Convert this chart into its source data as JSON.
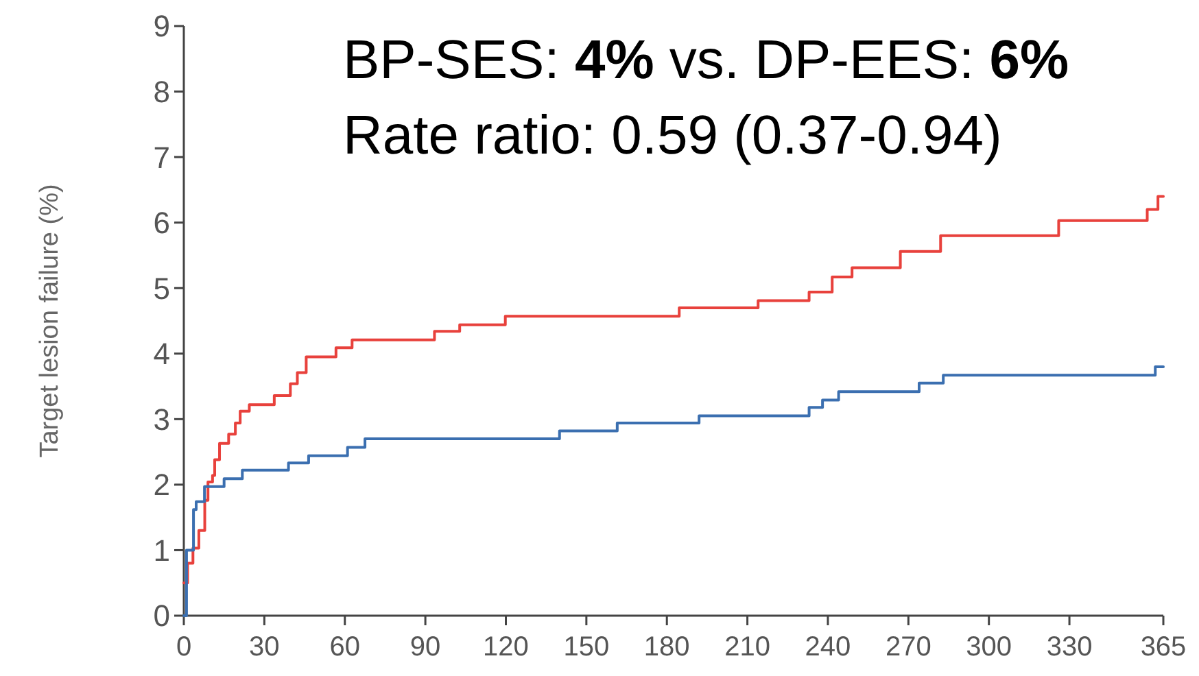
{
  "chart_data": {
    "type": "step",
    "title": "BP-SES: 4% vs. DP-EES: 6%",
    "subtitle": "Rate ratio: 0.59 (0.37-0.94)",
    "ylabel": "Target lesion failure (%)",
    "xlim": [
      0,
      365
    ],
    "xticks": [
      0,
      30,
      60,
      90,
      120,
      150,
      180,
      210,
      240,
      270,
      300,
      330,
      365
    ],
    "ylim": [
      0,
      9
    ],
    "yticks": [
      0,
      1,
      2,
      3,
      4,
      5,
      6,
      7,
      8,
      9
    ],
    "grid": false,
    "line_style": "solid",
    "marker": "none",
    "series": [
      {
        "color": "#e8413c",
        "x": [
          0,
          1.4,
          3.4,
          5.6,
          7.8,
          9,
          10.7,
          11.5,
          13.3,
          16.7,
          19.2,
          21,
          24.4,
          33.7,
          39.7,
          42.3,
          45.6,
          56.7,
          62.7,
          93.4,
          102.8,
          119.8,
          184.6,
          214,
          233,
          241.6,
          249,
          267,
          282,
          326,
          359,
          363,
          365
        ],
        "values": [
          0.5,
          0.8,
          1.03,
          1.3,
          1.76,
          2.04,
          2.14,
          2.38,
          2.63,
          2.77,
          2.94,
          3.12,
          3.22,
          3.36,
          3.54,
          3.71,
          3.95,
          4.09,
          4.21,
          4.34,
          4.44,
          4.57,
          4.7,
          4.81,
          4.94,
          5.17,
          5.31,
          5.56,
          5.8,
          6.03,
          6.2,
          6.4,
          6.4
        ]
      },
      {
        "color": "#3b6fb0",
        "x": [
          0,
          1,
          3.6,
          4.6,
          7.7,
          15,
          21.8,
          39,
          46.5,
          61,
          67.5,
          140,
          161.5,
          192,
          233,
          238,
          244,
          274,
          283,
          362,
          365
        ],
        "values": [
          0,
          1,
          1.62,
          1.74,
          1.97,
          2.09,
          2.22,
          2.33,
          2.44,
          2.57,
          2.7,
          2.82,
          2.94,
          3.05,
          3.18,
          3.29,
          3.42,
          3.55,
          3.67,
          3.8,
          3.8
        ]
      }
    ]
  }
}
